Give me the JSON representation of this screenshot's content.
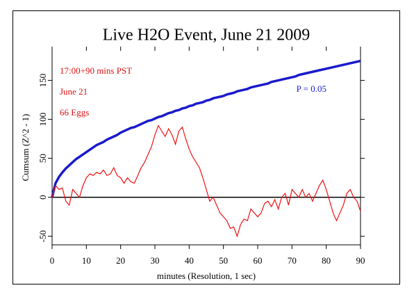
{
  "chart_data": {
    "type": "line",
    "title": "Live H2O Event, June 21 2009",
    "xlabel": "minutes (Resolution, 1 sec)",
    "ylabel": "Cumsum (Z^2 - 1)",
    "annotations": [
      {
        "text": "17:00+90 mins PST",
        "color": "#dd1111"
      },
      {
        "text": "June 21",
        "color": "#dd1111"
      },
      {
        "text": "66 Eggs",
        "color": "#dd1111"
      },
      {
        "text": "P = 0.05",
        "color": "#1a1acc"
      }
    ],
    "x": [
      0,
      1,
      2,
      3,
      4,
      5,
      6,
      7,
      8,
      9,
      10,
      11,
      12,
      13,
      14,
      15,
      16,
      17,
      18,
      19,
      20,
      21,
      22,
      23,
      24,
      25,
      26,
      27,
      28,
      29,
      30,
      31,
      32,
      33,
      34,
      35,
      36,
      37,
      38,
      39,
      40,
      41,
      42,
      43,
      44,
      45,
      46,
      47,
      48,
      49,
      50,
      51,
      52,
      53,
      54,
      55,
      56,
      57,
      58,
      59,
      60,
      61,
      62,
      63,
      64,
      65,
      66,
      67,
      68,
      69,
      70,
      71,
      72,
      73,
      74,
      75,
      76,
      77,
      78,
      79,
      80,
      81,
      82,
      83,
      84,
      85,
      86,
      87,
      88,
      89,
      90
    ],
    "series": [
      {
        "color": "#1a1acc",
        "values": [
          0,
          18,
          26,
          32,
          37,
          41,
          45,
          49,
          52,
          55,
          58,
          61,
          64,
          67,
          69,
          71,
          74,
          76,
          78,
          80,
          83,
          85,
          87,
          89,
          90,
          92,
          94,
          96,
          98,
          99,
          101,
          103,
          104,
          106,
          108,
          109,
          111,
          112,
          114,
          115,
          117,
          118,
          120,
          121,
          122,
          124,
          125,
          127,
          128,
          129,
          130,
          132,
          133,
          134,
          136,
          137,
          138,
          139,
          141,
          142,
          143,
          144,
          145,
          146,
          148,
          149,
          150,
          151,
          152,
          153,
          154,
          155,
          157,
          158,
          159,
          160,
          161,
          162,
          163,
          164,
          165,
          166,
          167,
          168,
          169,
          170,
          171,
          172,
          173,
          174,
          175
        ]
      },
      {
        "color": "#ee1111",
        "values": [
          0,
          15,
          10,
          12,
          -5,
          -10,
          10,
          5,
          0,
          15,
          25,
          30,
          28,
          32,
          30,
          35,
          28,
          30,
          38,
          28,
          25,
          18,
          25,
          20,
          18,
          28,
          38,
          45,
          55,
          65,
          80,
          92,
          85,
          78,
          88,
          80,
          68,
          85,
          90,
          75,
          62,
          52,
          45,
          38,
          25,
          10,
          -5,
          0,
          -10,
          -20,
          -25,
          -30,
          -40,
          -38,
          -50,
          -35,
          -28,
          -30,
          -15,
          -20,
          -25,
          -20,
          -8,
          -5,
          -12,
          -3,
          -15,
          0,
          5,
          -10,
          10,
          5,
          0,
          10,
          0,
          5,
          -5,
          5,
          15,
          22,
          10,
          -5,
          -20,
          -30,
          -20,
          -10,
          5,
          10,
          0,
          -5,
          -18
        ]
      }
    ],
    "hline": 0,
    "xlim": [
      0,
      90
    ],
    "ylim": [
      -61,
      188
    ],
    "xticks": [
      0,
      10,
      20,
      30,
      40,
      50,
      60,
      70,
      80,
      90
    ],
    "yticks": [
      -50,
      0,
      50,
      100,
      150
    ]
  }
}
